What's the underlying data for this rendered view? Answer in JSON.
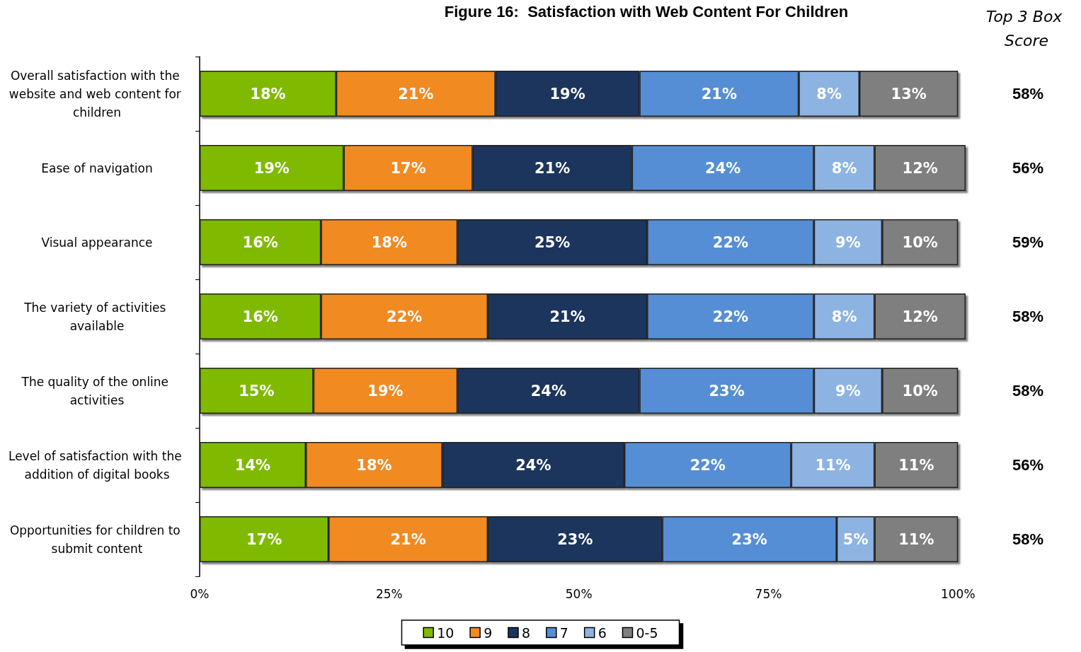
{
  "chart_data": {
    "type": "bar",
    "orientation": "horizontal",
    "stacked": true,
    "title": "Figure 16:  Satisfaction with Web Content For Children",
    "categories": [
      "Overall satisfaction with the website and web content for children",
      "Ease of navigation",
      "Visual appearance",
      "The variety of activities available",
      "The quality of the online activities",
      "Level of satisfaction with the addition of digital books",
      "Opportunities for children to submit content"
    ],
    "series": [
      {
        "name": "10",
        "color": "#7fba00",
        "values": [
          18,
          19,
          16,
          16,
          15,
          14,
          17
        ],
        "value_labels": [
          "18%",
          "19%",
          "16%",
          "16%",
          "15%",
          "14%",
          "17%"
        ]
      },
      {
        "name": "9",
        "color": "#f28a24",
        "values": [
          21,
          17,
          18,
          22,
          19,
          18,
          21
        ],
        "value_labels": [
          "21%",
          "17%",
          "18%",
          "22%",
          "19%",
          "18%",
          "21%"
        ]
      },
      {
        "name": "8",
        "color": "#1b365d",
        "values": [
          19,
          21,
          25,
          21,
          24,
          24,
          23
        ],
        "value_labels": [
          "19%",
          "21%",
          "25%",
          "21%",
          "24%",
          "24%",
          "23%"
        ]
      },
      {
        "name": "7",
        "color": "#558ed5",
        "values": [
          21,
          24,
          22,
          22,
          23,
          22,
          23
        ],
        "value_labels": [
          "21%",
          "24%",
          "22%",
          "22%",
          "23%",
          "22%",
          "23%"
        ]
      },
      {
        "name": "6",
        "color": "#8db3e2",
        "values": [
          8,
          8,
          9,
          8,
          9,
          11,
          5
        ],
        "value_labels": [
          "8%",
          "8%",
          "9%",
          "8%",
          "9%",
          "11%",
          "5%"
        ]
      },
      {
        "name": "0-5",
        "color": "#7f7f7f",
        "values": [
          13,
          12,
          10,
          12,
          10,
          11,
          11
        ],
        "value_labels": [
          "13%",
          "12%",
          "10%",
          "12%",
          "10%",
          "11%",
          "11%"
        ]
      }
    ],
    "xlim": [
      0,
      101
    ],
    "xticks": [
      {
        "value": 0,
        "label": "0%"
      },
      {
        "value": 25,
        "label": "25%"
      },
      {
        "value": 50,
        "label": "50%"
      },
      {
        "value": 75,
        "label": "75%"
      },
      {
        "value": 100,
        "label": "100%"
      }
    ],
    "annotations": [
      "Top 3 Box Score",
      "58%",
      "56%",
      "59%",
      "58%",
      "58%",
      "56%",
      "58%"
    ],
    "legend": "bottom",
    "grid": false
  }
}
